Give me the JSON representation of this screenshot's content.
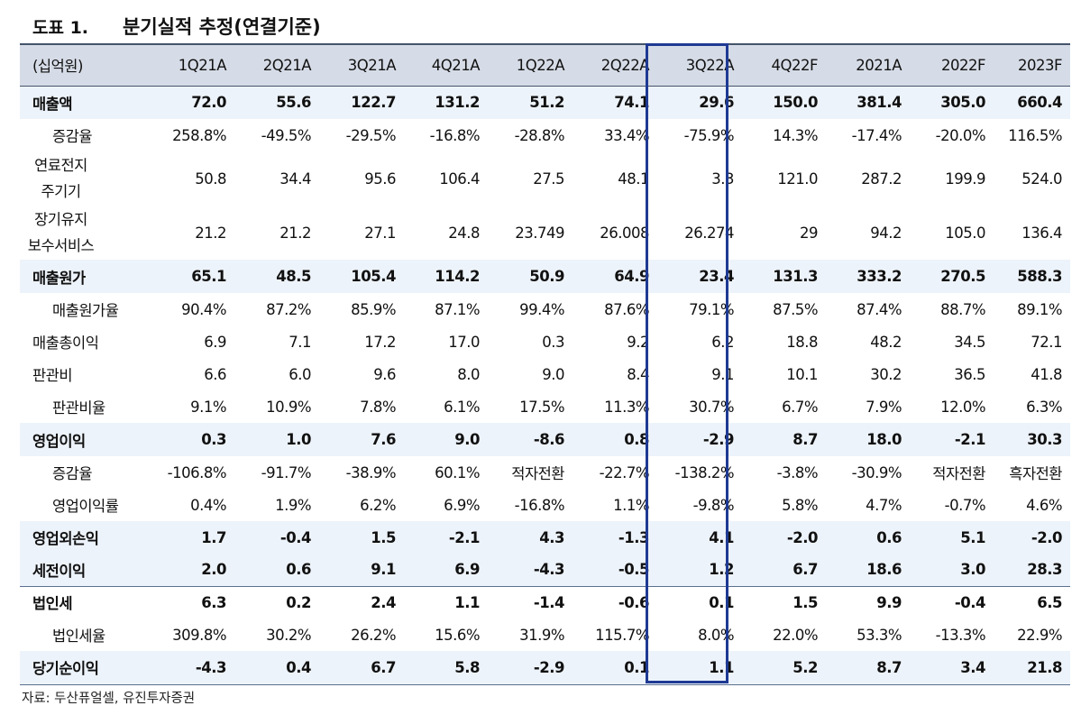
{
  "figure": {
    "label": "도표 1.",
    "title": "분기실적 추정(연결기준)"
  },
  "table": {
    "unit": "(십억원)",
    "columns": [
      "1Q21A",
      "2Q21A",
      "3Q21A",
      "4Q21A",
      "1Q22A",
      "2Q22A",
      "3Q22A",
      "4Q22F",
      "2021A",
      "2022F",
      "2023F"
    ],
    "highlight_column": "3Q22A",
    "rows": [
      {
        "label": "매출액",
        "values": [
          "72.0",
          "55.6",
          "122.7",
          "131.2",
          "51.2",
          "74.1",
          "29.6",
          "150.0",
          "381.4",
          "305.0",
          "660.4"
        ]
      },
      {
        "label": "증감율",
        "values": [
          "258.8%",
          "-49.5%",
          "-29.5%",
          "-16.8%",
          "-28.8%",
          "33.4%",
          "-75.9%",
          "14.3%",
          "-17.4%",
          "-20.0%",
          "116.5%"
        ]
      },
      {
        "label_line1": "연료전지",
        "label_line2": "주기기",
        "values": [
          "50.8",
          "34.4",
          "95.6",
          "106.4",
          "27.5",
          "48.1",
          "3.3",
          "121.0",
          "287.2",
          "199.9",
          "524.0"
        ]
      },
      {
        "label_line1": "장기유지",
        "label_line2": "보수서비스",
        "values": [
          "21.2",
          "21.2",
          "27.1",
          "24.8",
          "23.749",
          "26.008",
          "26.274",
          "29",
          "94.2",
          "105.0",
          "136.4"
        ]
      },
      {
        "label": "매출원가",
        "values": [
          "65.1",
          "48.5",
          "105.4",
          "114.2",
          "50.9",
          "64.9",
          "23.4",
          "131.3",
          "333.2",
          "270.5",
          "588.3"
        ]
      },
      {
        "label": "매출원가율",
        "values": [
          "90.4%",
          "87.2%",
          "85.9%",
          "87.1%",
          "99.4%",
          "87.6%",
          "79.1%",
          "87.5%",
          "87.4%",
          "88.7%",
          "89.1%"
        ]
      },
      {
        "label": "매출총이익",
        "values": [
          "6.9",
          "7.1",
          "17.2",
          "17.0",
          "0.3",
          "9.2",
          "6.2",
          "18.8",
          "48.2",
          "34.5",
          "72.1"
        ]
      },
      {
        "label": "판관비",
        "values": [
          "6.6",
          "6.0",
          "9.6",
          "8.0",
          "9.0",
          "8.4",
          "9.1",
          "10.1",
          "30.2",
          "36.5",
          "41.8"
        ]
      },
      {
        "label": "판관비율",
        "values": [
          "9.1%",
          "10.9%",
          "7.8%",
          "6.1%",
          "17.5%",
          "11.3%",
          "30.7%",
          "6.7%",
          "7.9%",
          "12.0%",
          "6.3%"
        ]
      },
      {
        "label": "영업이익",
        "values": [
          "0.3",
          "1.0",
          "7.6",
          "9.0",
          "-8.6",
          "0.8",
          "-2.9",
          "8.7",
          "18.0",
          "-2.1",
          "30.3"
        ]
      },
      {
        "label": "증감율",
        "values": [
          "-106.8%",
          "-91.7%",
          "-38.9%",
          "60.1%",
          "적자전환",
          "-22.7%",
          "-138.2%",
          "-3.8%",
          "-30.9%",
          "적자전환",
          "흑자전환"
        ]
      },
      {
        "label": "영업이익률",
        "values": [
          "0.4%",
          "1.9%",
          "6.2%",
          "6.9%",
          "-16.8%",
          "1.1%",
          "-9.8%",
          "5.8%",
          "4.7%",
          "-0.7%",
          "4.6%"
        ]
      },
      {
        "label": "영업외손익",
        "values": [
          "1.7",
          "-0.4",
          "1.5",
          "-2.1",
          "4.3",
          "-1.3",
          "4.1",
          "-2.0",
          "0.6",
          "5.1",
          "-2.0"
        ]
      },
      {
        "label": "세전이익",
        "values": [
          "2.0",
          "0.6",
          "9.1",
          "6.9",
          "-4.3",
          "-0.5",
          "1.2",
          "6.7",
          "18.6",
          "3.0",
          "28.3"
        ]
      },
      {
        "label": "법인세",
        "values": [
          "6.3",
          "0.2",
          "2.4",
          "1.1",
          "-1.4",
          "-0.6",
          "0.1",
          "1.5",
          "9.9",
          "-0.4",
          "6.5"
        ]
      },
      {
        "label": "법인세율",
        "values": [
          "309.8%",
          "30.2%",
          "26.2%",
          "15.6%",
          "31.9%",
          "115.7%",
          "8.0%",
          "22.0%",
          "53.3%",
          "-13.3%",
          "22.9%"
        ]
      },
      {
        "label": "당기순이익",
        "values": [
          "-4.3",
          "0.4",
          "6.7",
          "5.8",
          "-2.9",
          "0.1",
          "1.1",
          "5.2",
          "8.7",
          "3.4",
          "21.8"
        ]
      }
    ]
  },
  "source": "자료: 두산퓨얼셀, 유진투자증권",
  "colors": {
    "header_bg": "#d6dce7",
    "shaded_row_bg": "#edf3fa",
    "highlight_border": "#1f3a93"
  }
}
